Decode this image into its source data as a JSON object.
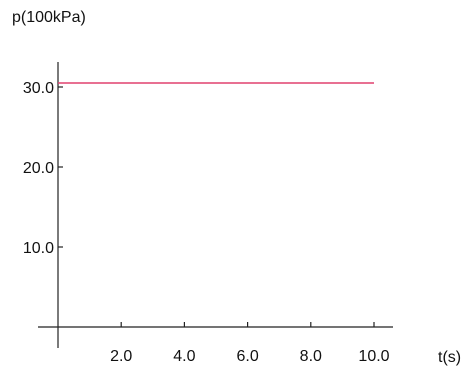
{
  "chart_data": {
    "type": "line",
    "xlabel": "t(s)",
    "ylabel": "p(100kPa)",
    "xlim": [
      0,
      10.3
    ],
    "ylim": [
      0,
      34
    ],
    "x_ticks": [
      2.0,
      4.0,
      6.0,
      8.0,
      10.0
    ],
    "x_tick_labels": [
      "2.0",
      "4.0",
      "6.0",
      "8.0",
      "10.0"
    ],
    "y_ticks": [
      10.0,
      20.0,
      30.0
    ],
    "y_tick_labels": [
      "10.0",
      "20.0",
      "30.0"
    ],
    "grid": false,
    "series": [
      {
        "color": "#e0406e",
        "x": [
          0,
          10.0
        ],
        "y": [
          30.5,
          30.5
        ]
      }
    ]
  }
}
